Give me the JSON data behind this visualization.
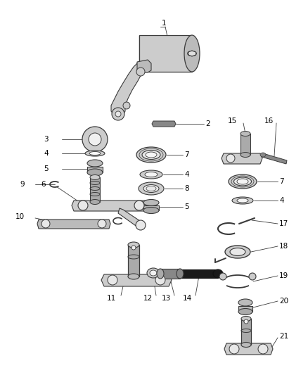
{
  "bg_color": "#ffffff",
  "dark": "#3a3a3a",
  "gray1": "#cccccc",
  "gray2": "#aaaaaa",
  "gray3": "#888888",
  "gray4": "#bbbbbb",
  "figsize": [
    4.38,
    5.33
  ],
  "dpi": 100
}
